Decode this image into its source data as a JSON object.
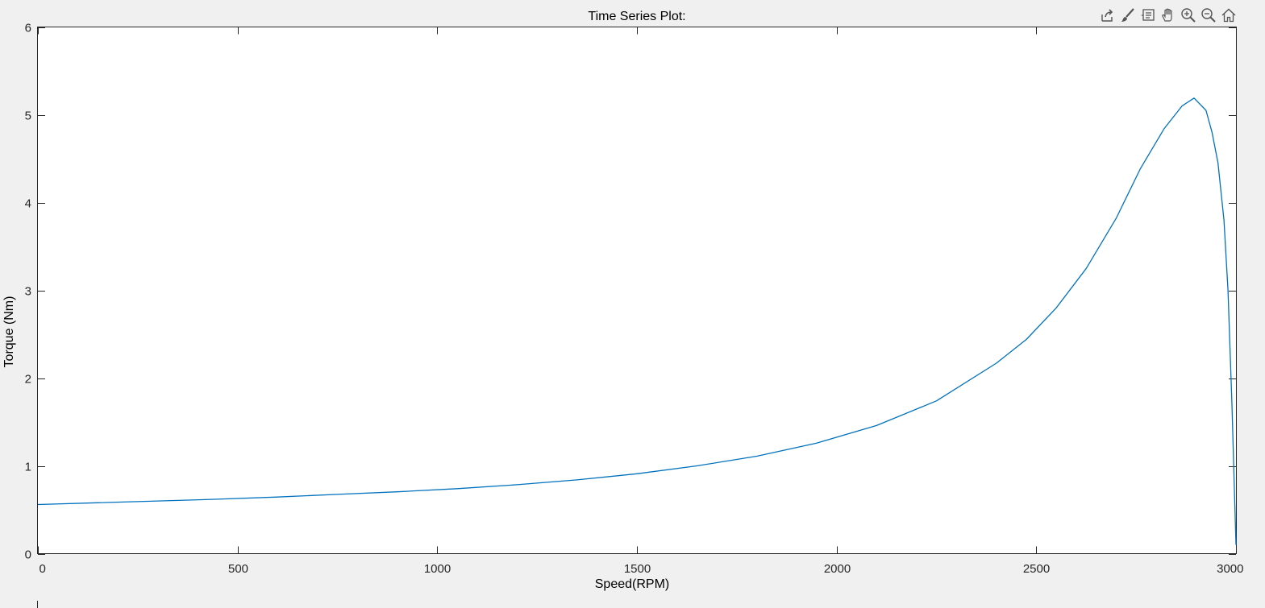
{
  "window": {
    "background": "#f0f0f0"
  },
  "toolbar": {
    "icons": [
      "export-icon",
      "brush-icon",
      "datatip-icon",
      "pan-icon",
      "zoom-in-icon",
      "zoom-out-icon",
      "home-icon"
    ]
  },
  "chart_data": {
    "type": "line",
    "title": "Time Series Plot:",
    "xlabel": "Speed(RPM)",
    "ylabel": "Torque (Nm)",
    "xlim": [
      0,
      3000
    ],
    "ylim": [
      0,
      6
    ],
    "xticks": [
      "0",
      "500",
      "1000",
      "1500",
      "2000",
      "2500",
      "3000"
    ],
    "yticks": [
      "0",
      "1",
      "2",
      "3",
      "4",
      "5",
      "6"
    ],
    "grid": false,
    "legend": "none",
    "line_color": "#0072bd",
    "series": [
      {
        "x": [
          0,
          150,
          300,
          450,
          600,
          750,
          900,
          1050,
          1200,
          1350,
          1500,
          1650,
          1800,
          1950,
          2100,
          2250,
          2400,
          2475,
          2550,
          2625,
          2700,
          2760,
          2820,
          2865,
          2895,
          2925,
          2940,
          2955,
          2970,
          2980,
          2990,
          3000
        ],
        "y": [
          0.56,
          0.58,
          0.6,
          0.62,
          0.645,
          0.675,
          0.705,
          0.74,
          0.785,
          0.84,
          0.91,
          1.0,
          1.11,
          1.26,
          1.46,
          1.74,
          2.17,
          2.44,
          2.8,
          3.25,
          3.82,
          4.38,
          4.84,
          5.1,
          5.19,
          5.05,
          4.8,
          4.45,
          3.8,
          3.0,
          1.7,
          0.1
        ]
      }
    ]
  }
}
